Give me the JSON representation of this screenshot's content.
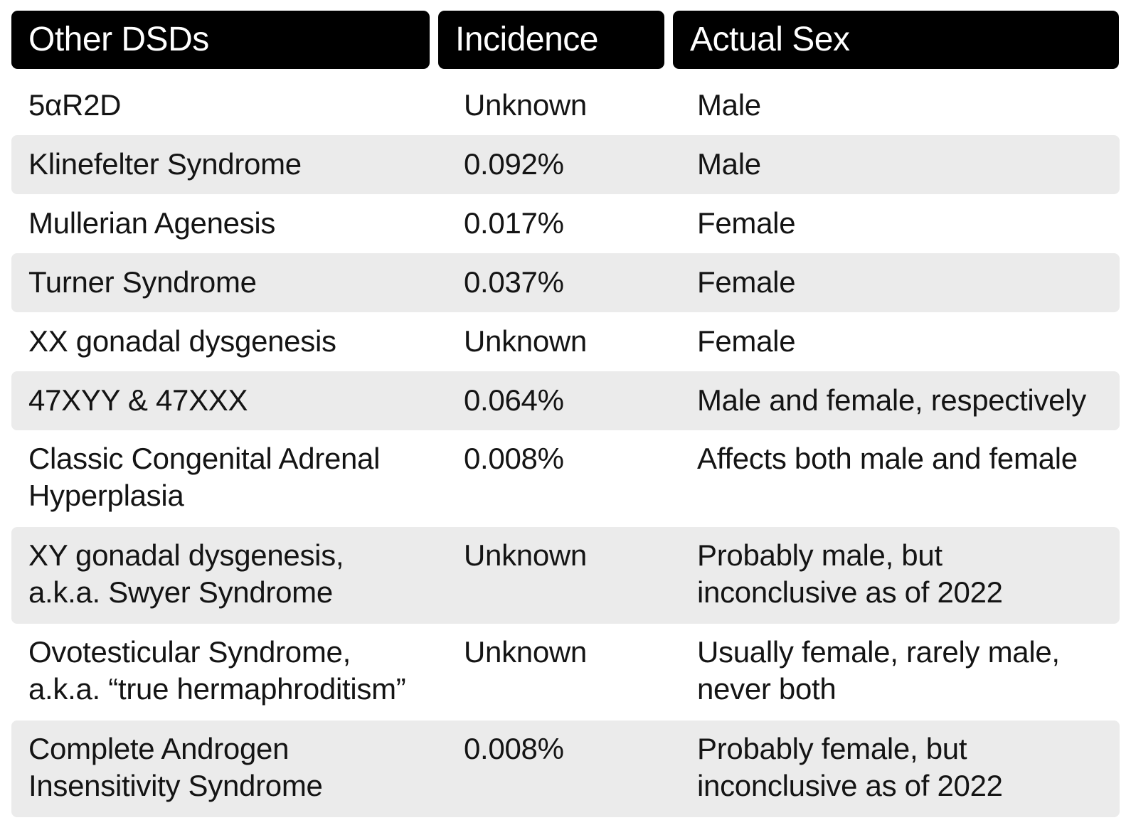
{
  "headers": {
    "condition": "Other DSDs",
    "incidence": "Incidence",
    "sex": "Actual Sex"
  },
  "rows": [
    {
      "condition": [
        "5αR2D"
      ],
      "incidence": "Unknown",
      "sex": [
        "Male"
      ]
    },
    {
      "condition": [
        "Klinefelter Syndrome"
      ],
      "incidence": "0.092%",
      "sex": [
        "Male"
      ]
    },
    {
      "condition": [
        "Mullerian Agenesis"
      ],
      "incidence": "0.017%",
      "sex": [
        "Female"
      ]
    },
    {
      "condition": [
        "Turner Syndrome"
      ],
      "incidence": "0.037%",
      "sex": [
        "Female"
      ]
    },
    {
      "condition": [
        "XX gonadal dysgenesis"
      ],
      "incidence": "Unknown",
      "sex": [
        "Female"
      ]
    },
    {
      "condition": [
        "47XYY & 47XXX"
      ],
      "incidence": "0.064%",
      "sex": [
        "Male and female, respectively"
      ]
    },
    {
      "condition": [
        "Classic Congenital Adrenal",
        "Hyperplasia"
      ],
      "incidence": "0.008%",
      "sex": [
        "Affects both male and female"
      ]
    },
    {
      "condition": [
        "XY gonadal dysgenesis,",
        "a.k.a. Swyer Syndrome"
      ],
      "incidence": "Unknown",
      "sex": [
        "Probably male, but",
        "inconclusive as of 2022"
      ]
    },
    {
      "condition": [
        "Ovotesticular Syndrome,",
        "a.k.a. “true hermaphroditism”"
      ],
      "incidence": "Unknown",
      "sex": [
        "Usually female, rarely male,",
        "never both"
      ]
    },
    {
      "condition": [
        "Complete Androgen",
        "Insensitivity Syndrome"
      ],
      "incidence": "0.008%",
      "sex": [
        "Probably female, but",
        "inconclusive as of 2022"
      ]
    }
  ],
  "colors": {
    "header_bg": "#000000",
    "header_text": "#ffffff",
    "stripe": "#ebebeb",
    "text": "#141414"
  }
}
